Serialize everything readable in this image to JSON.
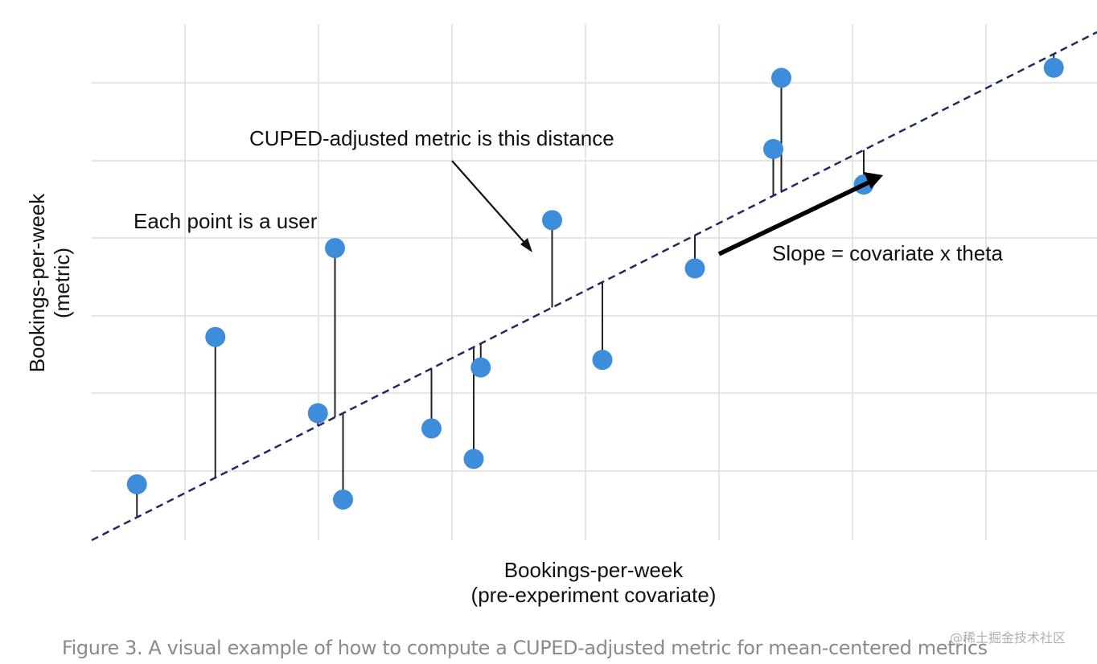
{
  "chart_data": {
    "type": "scatter",
    "title": "",
    "xlabel_lines": [
      "Bookings-per-week",
      "(pre-experiment covariate)"
    ],
    "ylabel_lines": [
      "Bookings-per-week",
      "(metric)"
    ],
    "xlim": [
      0,
      100
    ],
    "ylim": [
      0,
      100
    ],
    "axis_ticks_labeled": false,
    "grid": true,
    "regression_line": {
      "style": "dashed",
      "color": "#1b2d5e",
      "intercept": 0,
      "slope": 1.0
    },
    "points": [
      {
        "x": 4.5,
        "y": 11.0
      },
      {
        "x": 12.3,
        "y": 40.0
      },
      {
        "x": 22.5,
        "y": 25.0
      },
      {
        "x": 24.2,
        "y": 57.5
      },
      {
        "x": 25.0,
        "y": 8.0
      },
      {
        "x": 33.8,
        "y": 22.0
      },
      {
        "x": 38.0,
        "y": 16.0
      },
      {
        "x": 38.7,
        "y": 34.0
      },
      {
        "x": 45.8,
        "y": 63.0
      },
      {
        "x": 50.8,
        "y": 35.5
      },
      {
        "x": 60.0,
        "y": 53.5
      },
      {
        "x": 67.8,
        "y": 77.0
      },
      {
        "x": 68.6,
        "y": 91.0
      },
      {
        "x": 76.8,
        "y": 70.0
      },
      {
        "x": 95.7,
        "y": 93.0
      }
    ],
    "annotations": {
      "points": "Each point is a user",
      "distance": "CUPED-adjusted metric is this distance",
      "slope": "Slope = covariate x theta"
    },
    "point_color": "#3d8ddb",
    "residual_color": "#222222"
  },
  "caption": "Figure 3. A visual example of how to compute a CUPED-adjusted metric for mean-centered metrics",
  "watermark": "@稀土掘金技术社区"
}
